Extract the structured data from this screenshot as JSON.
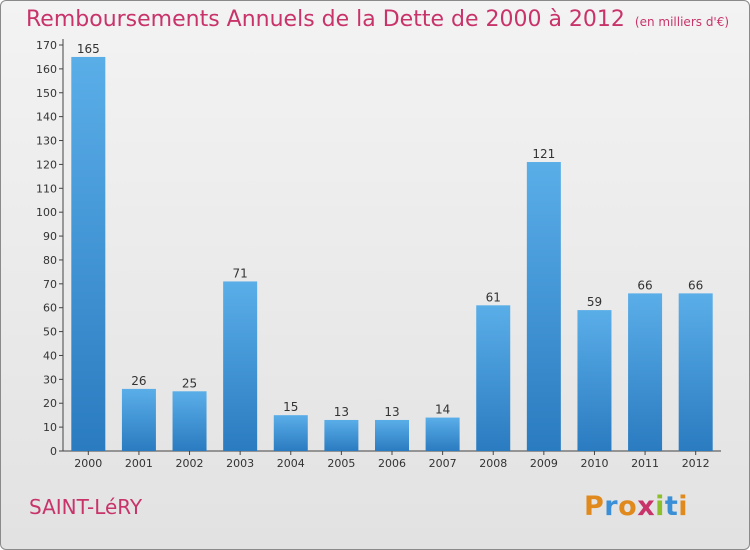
{
  "header": {
    "title": "Remboursements Annuels de la Dette de 2000 à 2012",
    "unit": "(en milliers d'€)"
  },
  "footer": {
    "commune": "SAINT-LéRY",
    "logo_text": "Proxiti",
    "logo_colors": [
      "#e08a1e",
      "#3b8fd6",
      "#e08a1e",
      "#c8336a",
      "#8dbf2a",
      "#3b8fd6",
      "#e08a1e"
    ]
  },
  "colors": {
    "bar_top": "#5aaee8",
    "bar_bottom": "#2a7bc0",
    "accent": "#c8336a"
  },
  "chart_data": {
    "type": "bar",
    "title": "Remboursements Annuels de la Dette de 2000 à 2012",
    "subtitle": "(en milliers d'€)",
    "xlabel": "",
    "ylabel": "",
    "ylim": [
      0,
      170
    ],
    "ytick_step": 10,
    "grid": false,
    "categories": [
      "2000",
      "2001",
      "2002",
      "2003",
      "2004",
      "2005",
      "2006",
      "2007",
      "2008",
      "2009",
      "2010",
      "2011",
      "2012"
    ],
    "values": [
      165,
      26,
      25,
      71,
      15,
      13,
      13,
      14,
      61,
      121,
      59,
      66,
      66
    ],
    "value_labels": [
      "165",
      "26",
      "25",
      "71",
      "15",
      "13",
      "13",
      "14",
      "61",
      "121",
      "59",
      "66",
      "66"
    ]
  }
}
